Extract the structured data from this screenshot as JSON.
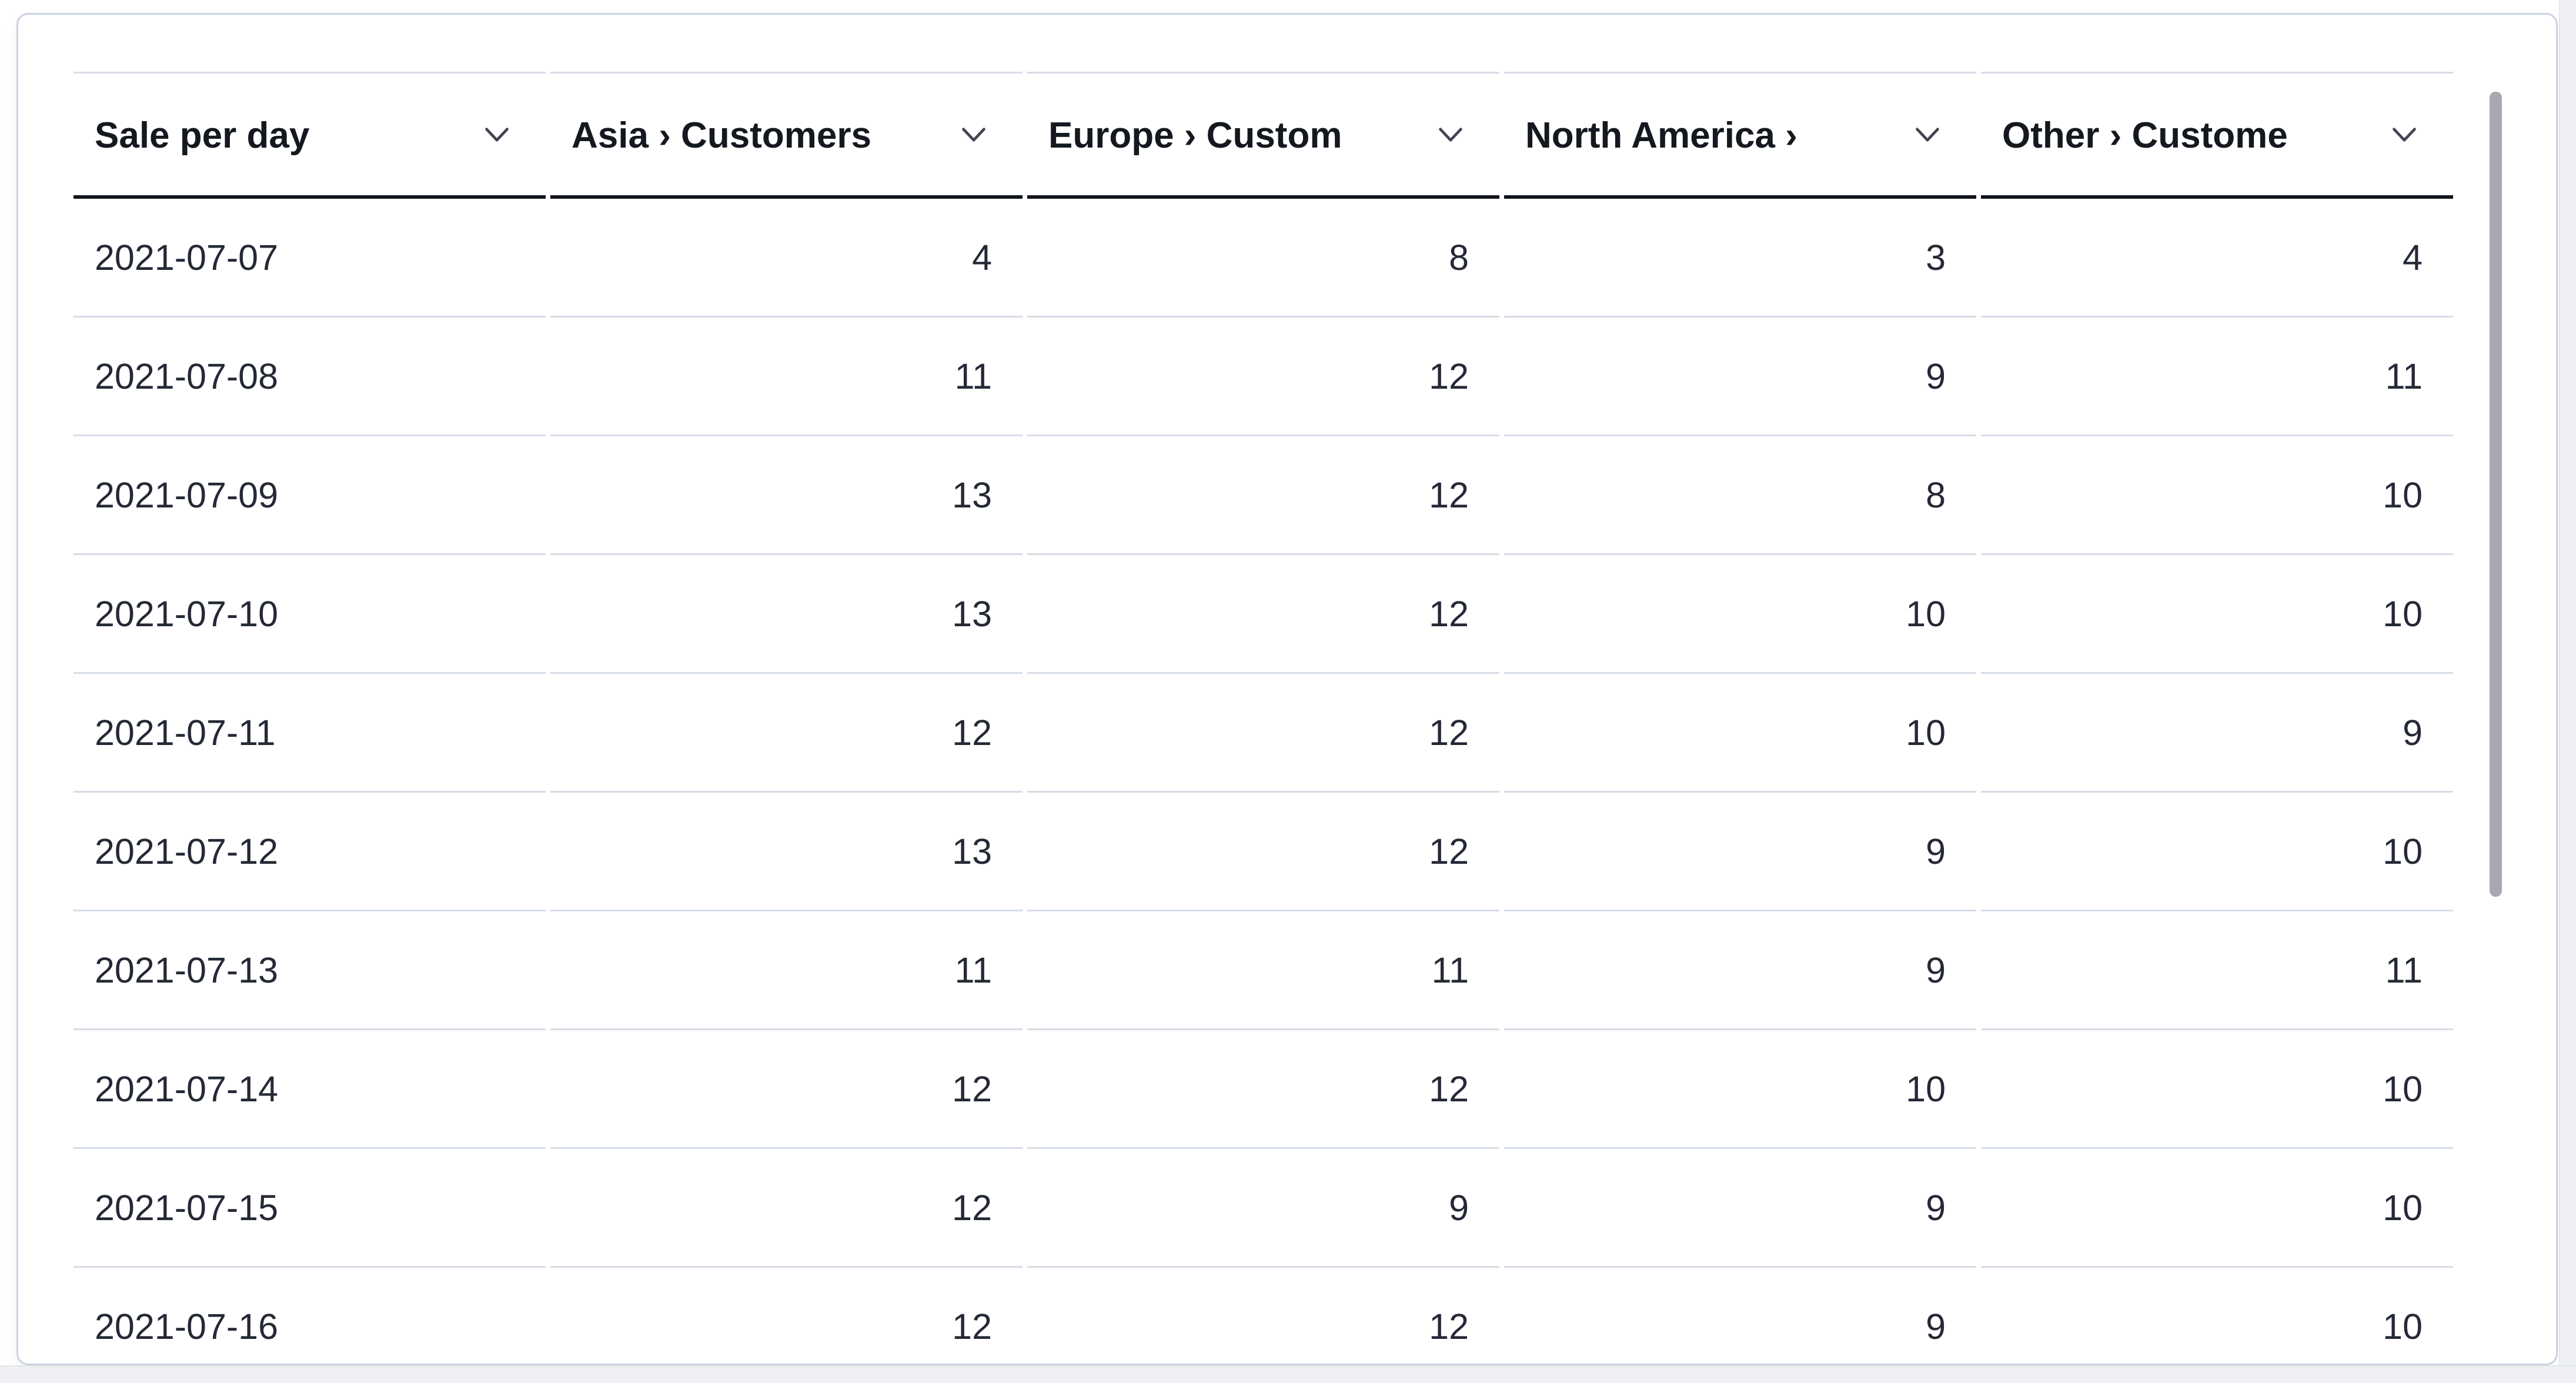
{
  "table": {
    "columns": [
      {
        "label": "Sale per day"
      },
      {
        "label": "Asia › Customers"
      },
      {
        "label": "Europe › Custom"
      },
      {
        "label": "North America ›"
      },
      {
        "label": "Other › Custome"
      }
    ],
    "rows": [
      [
        "2021-07-07",
        "4",
        "8",
        "3",
        "4"
      ],
      [
        "2021-07-08",
        "11",
        "12",
        "9",
        "11"
      ],
      [
        "2021-07-09",
        "13",
        "12",
        "8",
        "10"
      ],
      [
        "2021-07-10",
        "13",
        "12",
        "10",
        "10"
      ],
      [
        "2021-07-11",
        "12",
        "12",
        "10",
        "9"
      ],
      [
        "2021-07-12",
        "13",
        "12",
        "9",
        "10"
      ],
      [
        "2021-07-13",
        "11",
        "11",
        "9",
        "11"
      ],
      [
        "2021-07-14",
        "12",
        "12",
        "10",
        "10"
      ],
      [
        "2021-07-15",
        "12",
        "9",
        "9",
        "10"
      ],
      [
        "2021-07-16",
        "12",
        "12",
        "9",
        "10"
      ]
    ]
  },
  "colors": {
    "header_text": "#14181f",
    "body_text": "#242936",
    "row_divider": "#d6dde7",
    "header_underline": "#10141c",
    "card_border": "#c9d3e0",
    "scrollbar_thumb": "#a6a9b0",
    "scrollbar_gutter": "#eef0f3"
  }
}
